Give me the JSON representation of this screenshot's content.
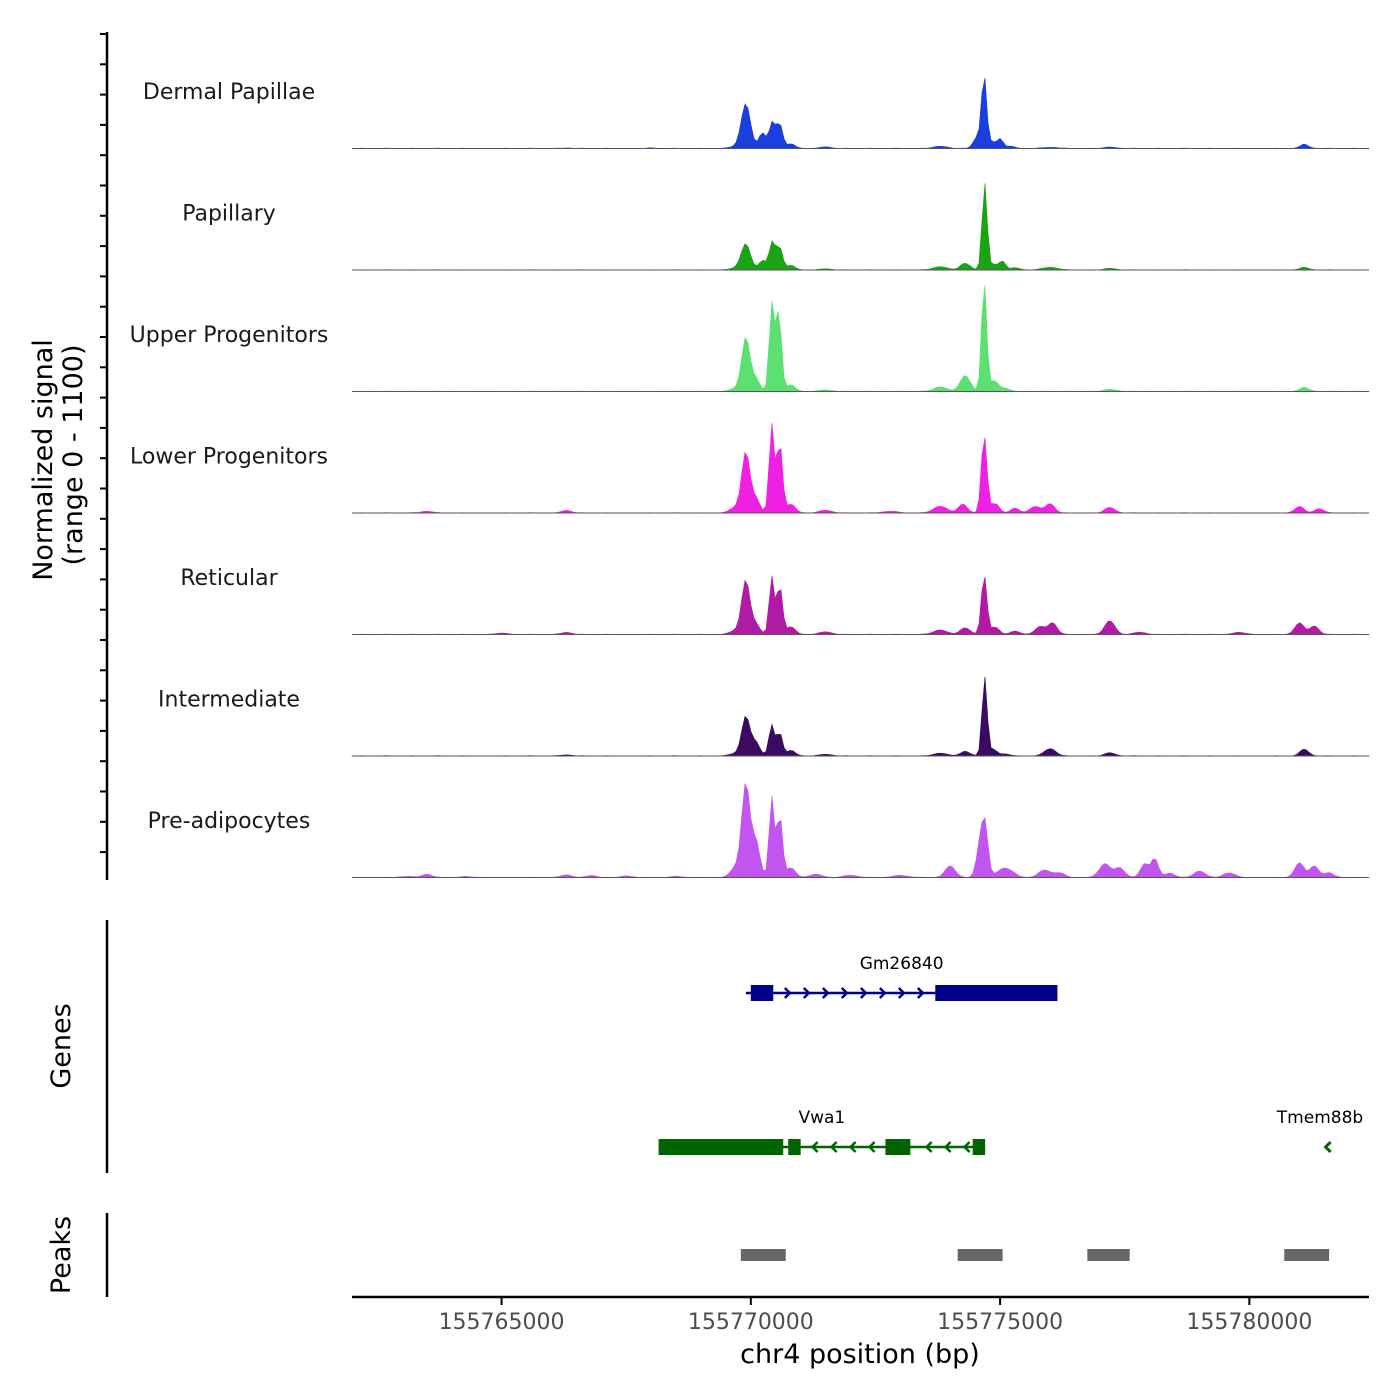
{
  "chart_data": {
    "type": "area",
    "title": "",
    "ylabel_line1": "Normalized signal",
    "ylabel_line2": "(range 0 - 1100)",
    "xlabel": "chr4 position (bp)",
    "chrom": "chr4",
    "xlim": [
      155762000,
      155782400
    ],
    "ylim": [
      0,
      1100
    ],
    "x_ticks": [
      {
        "value": 155765000,
        "label": "155765000"
      },
      {
        "value": 155770000,
        "label": "155770000"
      },
      {
        "value": 155775000,
        "label": "155775000"
      },
      {
        "value": 155780000,
        "label": "155780000"
      }
    ],
    "coverage_tracks": [
      {
        "name": "Dermal Papillae",
        "color": "#1a3fdc",
        "peaks": [
          [
            155766300,
            4,
            80
          ],
          [
            155768000,
            5,
            70
          ],
          [
            155769700,
            18,
            120
          ],
          [
            155769900,
            430,
            90
          ],
          [
            155770230,
            150,
            70
          ],
          [
            155770430,
            250,
            60
          ],
          [
            155770580,
            230,
            60
          ],
          [
            155770800,
            40,
            90
          ],
          [
            155771500,
            15,
            100
          ],
          [
            155773800,
            20,
            140
          ],
          [
            155774550,
            110,
            80
          ],
          [
            155774680,
            690,
            50
          ],
          [
            155774830,
            60,
            70
          ],
          [
            155775000,
            90,
            60
          ],
          [
            155775200,
            20,
            90
          ],
          [
            155776000,
            10,
            150
          ],
          [
            155777200,
            12,
            110
          ],
          [
            155781100,
            35,
            90
          ]
        ]
      },
      {
        "name": "Papillary",
        "color": "#1aa312",
        "peaks": [
          [
            155769700,
            20,
            110
          ],
          [
            155769900,
            250,
            90
          ],
          [
            155770230,
            90,
            70
          ],
          [
            155770430,
            270,
            60
          ],
          [
            155770580,
            210,
            60
          ],
          [
            155770800,
            40,
            90
          ],
          [
            155771500,
            10,
            120
          ],
          [
            155773800,
            30,
            140
          ],
          [
            155774300,
            60,
            100
          ],
          [
            155774690,
            840,
            50
          ],
          [
            155774880,
            50,
            80
          ],
          [
            155775050,
            80,
            60
          ],
          [
            155775300,
            20,
            100
          ],
          [
            155776000,
            25,
            150
          ],
          [
            155777200,
            15,
            110
          ],
          [
            155781100,
            25,
            90
          ]
        ]
      },
      {
        "name": "Upper Progenitors",
        "color": "#5ce072",
        "peaks": [
          [
            155769700,
            30,
            110
          ],
          [
            155769900,
            520,
            80
          ],
          [
            155770100,
            120,
            80
          ],
          [
            155770420,
            840,
            50
          ],
          [
            155770560,
            760,
            55
          ],
          [
            155770800,
            60,
            90
          ],
          [
            155771500,
            15,
            120
          ],
          [
            155773800,
            40,
            140
          ],
          [
            155774300,
            150,
            100
          ],
          [
            155774680,
            1080,
            50
          ],
          [
            155774880,
            100,
            80
          ],
          [
            155775100,
            30,
            90
          ],
          [
            155777200,
            20,
            120
          ],
          [
            155781100,
            35,
            100
          ]
        ]
      },
      {
        "name": "Lower Progenitors",
        "color": "#f020e2",
        "peaks": [
          [
            155763500,
            15,
            120
          ],
          [
            155766300,
            25,
            90
          ],
          [
            155769700,
            55,
            110
          ],
          [
            155769900,
            580,
            80
          ],
          [
            155770100,
            140,
            80
          ],
          [
            155770420,
            860,
            50
          ],
          [
            155770580,
            680,
            55
          ],
          [
            155770800,
            80,
            90
          ],
          [
            155771500,
            25,
            120
          ],
          [
            155772800,
            15,
            150
          ],
          [
            155773800,
            60,
            140
          ],
          [
            155774250,
            80,
            90
          ],
          [
            155774680,
            760,
            55
          ],
          [
            155774900,
            90,
            80
          ],
          [
            155775300,
            40,
            90
          ],
          [
            155775700,
            60,
            100
          ],
          [
            155776000,
            90,
            90
          ],
          [
            155777200,
            50,
            100
          ],
          [
            155781000,
            60,
            90
          ],
          [
            155781400,
            40,
            90
          ]
        ]
      },
      {
        "name": "Reticular",
        "color": "#b01aa5",
        "peaks": [
          [
            155765000,
            12,
            120
          ],
          [
            155766300,
            20,
            100
          ],
          [
            155769700,
            40,
            110
          ],
          [
            155769900,
            520,
            80
          ],
          [
            155770100,
            100,
            80
          ],
          [
            155770420,
            560,
            50
          ],
          [
            155770580,
            470,
            55
          ],
          [
            155770800,
            70,
            90
          ],
          [
            155771500,
            25,
            120
          ],
          [
            155773800,
            40,
            140
          ],
          [
            155774300,
            60,
            100
          ],
          [
            155774680,
            580,
            55
          ],
          [
            155774900,
            70,
            80
          ],
          [
            155775300,
            30,
            100
          ],
          [
            155775800,
            70,
            100
          ],
          [
            155776050,
            110,
            90
          ],
          [
            155777200,
            130,
            100
          ],
          [
            155777800,
            20,
            120
          ],
          [
            155779800,
            20,
            120
          ],
          [
            155781000,
            110,
            90
          ],
          [
            155781300,
            80,
            90
          ]
        ]
      },
      {
        "name": "Intermediate",
        "color": "#3a0b60",
        "peaks": [
          [
            155766300,
            10,
            100
          ],
          [
            155769700,
            25,
            110
          ],
          [
            155769900,
            380,
            80
          ],
          [
            155770100,
            130,
            80
          ],
          [
            155770420,
            300,
            55
          ],
          [
            155770580,
            220,
            55
          ],
          [
            155770800,
            50,
            90
          ],
          [
            155771500,
            15,
            120
          ],
          [
            155773800,
            25,
            140
          ],
          [
            155774300,
            40,
            100
          ],
          [
            155774690,
            770,
            50
          ],
          [
            155774870,
            60,
            70
          ],
          [
            155775100,
            20,
            90
          ],
          [
            155776000,
            70,
            110
          ],
          [
            155777200,
            30,
            100
          ],
          [
            155781100,
            60,
            90
          ]
        ]
      },
      {
        "name": "Pre-adipocytes",
        "color": "#c255f0",
        "peaks": [
          [
            155763100,
            10,
            120
          ],
          [
            155763500,
            30,
            100
          ],
          [
            155764300,
            10,
            100
          ],
          [
            155766300,
            25,
            100
          ],
          [
            155766800,
            20,
            90
          ],
          [
            155767500,
            15,
            100
          ],
          [
            155768500,
            10,
            120
          ],
          [
            155769700,
            100,
            100
          ],
          [
            155769900,
            900,
            80
          ],
          [
            155770100,
            350,
            80
          ],
          [
            155770420,
            780,
            50
          ],
          [
            155770580,
            600,
            55
          ],
          [
            155770800,
            90,
            90
          ],
          [
            155771300,
            30,
            120
          ],
          [
            155772000,
            20,
            140
          ],
          [
            155773000,
            20,
            140
          ],
          [
            155774000,
            110,
            100
          ],
          [
            155774600,
            320,
            70
          ],
          [
            155774700,
            450,
            60
          ],
          [
            155775100,
            90,
            150
          ],
          [
            155775900,
            70,
            120
          ],
          [
            155776200,
            40,
            100
          ],
          [
            155777100,
            130,
            110
          ],
          [
            155777400,
            90,
            100
          ],
          [
            155777900,
            130,
            80
          ],
          [
            155778100,
            180,
            70
          ],
          [
            155778400,
            40,
            100
          ],
          [
            155779000,
            60,
            110
          ],
          [
            155779600,
            40,
            120
          ],
          [
            155781000,
            140,
            90
          ],
          [
            155781300,
            110,
            90
          ],
          [
            155781600,
            40,
            100
          ]
        ]
      }
    ],
    "genes": [
      {
        "name": "Gm26840",
        "strand": "+",
        "color": "#00008b",
        "start": 155769900,
        "end": 155776150,
        "exons": [
          [
            155770000,
            155770450
          ],
          [
            155773700,
            155776150
          ]
        ],
        "row": 1
      },
      {
        "name": "Vwa1",
        "strand": "-",
        "color": "#006400",
        "start": 155768150,
        "end": 155774700,
        "exons": [
          [
            155768150,
            155770650
          ],
          [
            155770750,
            155771000
          ],
          [
            155772700,
            155773200
          ],
          [
            155774450,
            155774700
          ]
        ],
        "row": 2
      },
      {
        "name": "Tmem88b",
        "strand": "-",
        "color": "#006400",
        "start": 155781550,
        "end": 155781600,
        "exons": [],
        "row": 2
      }
    ],
    "genes_panel_title": "Genes",
    "peaks_panel_title": "Peaks",
    "peak_regions": [
      [
        155769800,
        155770700
      ],
      [
        155774150,
        155775050
      ],
      [
        155776750,
        155777600
      ],
      [
        155780700,
        155781600
      ]
    ],
    "colors": {
      "peak_bar": "#666666",
      "baseline": "#555555",
      "axis": "#000000"
    }
  }
}
